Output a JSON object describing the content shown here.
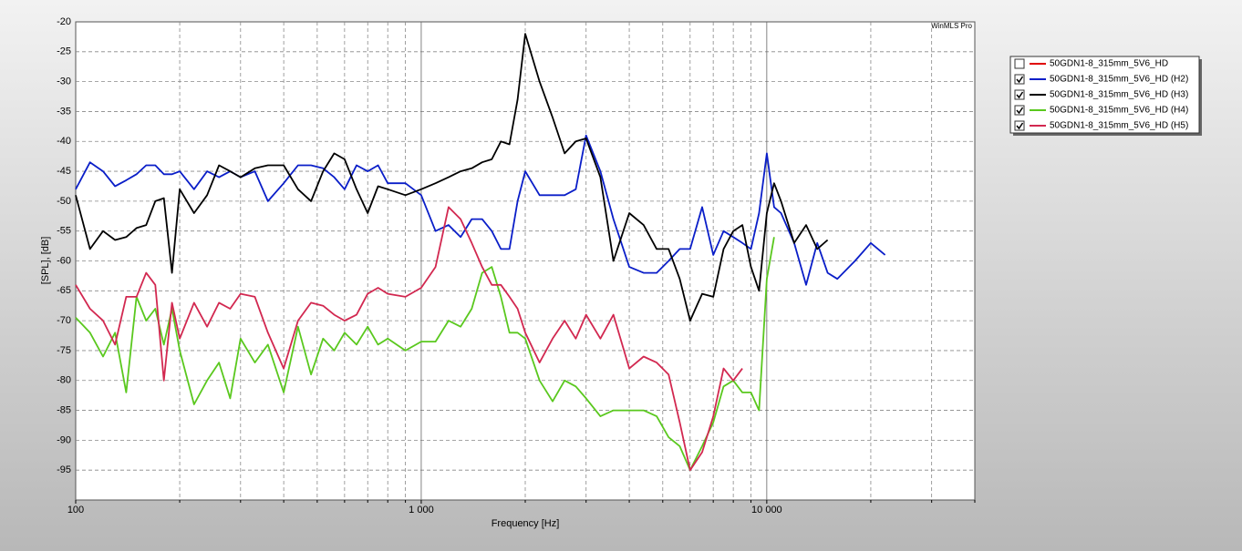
{
  "chart_data": {
    "type": "line",
    "corner_label": "WinMLS Pro",
    "xlabel": "Frequency [Hz]",
    "ylabel": "[SPL], [dB]",
    "xscale": "log",
    "xlim": [
      100,
      40000
    ],
    "xticks": [
      100,
      {
        "value": 1000,
        "label": "1 000"
      },
      {
        "value": 10000,
        "label": "10 000"
      }
    ],
    "xminorticks": [
      200,
      300,
      400,
      500,
      600,
      700,
      800,
      900,
      2000,
      3000,
      4000,
      5000,
      6000,
      7000,
      8000,
      9000,
      20000,
      30000,
      40000
    ],
    "ylim": [
      -100,
      -20
    ],
    "yticks": [
      -20,
      -25,
      -30,
      -35,
      -40,
      -45,
      -50,
      -55,
      -60,
      -65,
      -70,
      -75,
      -80,
      -85,
      -90,
      -95
    ],
    "grid": true,
    "legend": "top-right",
    "x": [
      100,
      110,
      120,
      130,
      140,
      150,
      160,
      170,
      180,
      190,
      200,
      220,
      240,
      260,
      280,
      300,
      330,
      360,
      400,
      440,
      480,
      520,
      560,
      600,
      650,
      700,
      750,
      800,
      900,
      1000,
      1100,
      1200,
      1300,
      1400,
      1500,
      1600,
      1700,
      1800,
      1900,
      2000,
      2200,
      2400,
      2600,
      2800,
      3000,
      3300,
      3600,
      4000,
      4400,
      4800,
      5200,
      5600,
      6000,
      6500,
      7000,
      7500,
      8000,
      8500,
      9000,
      9500,
      10000,
      10500,
      11000,
      12000,
      13000,
      14000,
      15000,
      16000,
      18000,
      20000,
      22000
    ],
    "series": [
      {
        "name": "50GDN1-8_315mm_5V6_HD",
        "color": "#e00000",
        "checked": false,
        "values": [
          null,
          null,
          null,
          null,
          null,
          null,
          null,
          null,
          null,
          null,
          null,
          null,
          null,
          null,
          null,
          null,
          null,
          null,
          null,
          null,
          null,
          null,
          null,
          null,
          null,
          null,
          null,
          null,
          null,
          null,
          null,
          null,
          null,
          null,
          null,
          null,
          null,
          null,
          null,
          null,
          null,
          null,
          null,
          null,
          null,
          null,
          null,
          null,
          null,
          null,
          null,
          null,
          null,
          null,
          null,
          null,
          null,
          null,
          null,
          null,
          null,
          null,
          null,
          null,
          null,
          null,
          null,
          null,
          null,
          null,
          null
        ]
      },
      {
        "name": "50GDN1-8_315mm_5V6_HD (H2)",
        "color": "#0a1ec8",
        "checked": true,
        "values": [
          -48,
          -43.5,
          -45,
          -47.5,
          -46.5,
          -45.5,
          -44,
          -44,
          -45.5,
          -45.5,
          -45,
          -48,
          -45,
          -46,
          -45,
          -46,
          -45,
          -50,
          -47,
          -44,
          -44,
          -44.5,
          -46,
          -48,
          -44,
          -45,
          -44,
          -47,
          -47,
          -49,
          -55,
          -54,
          -56,
          -53,
          -53,
          -55,
          -58,
          -58,
          -50,
          -45,
          -49,
          -49,
          -49,
          -48,
          -39,
          -45,
          -53,
          -61,
          -62,
          -62,
          -60,
          -58,
          -58,
          -51,
          -59,
          -55,
          -56,
          -57,
          -58,
          -52,
          -42,
          -51,
          -52,
          -57,
          -64,
          -57,
          -62,
          -63,
          -60,
          -57,
          -59
        ]
      },
      {
        "name": "50GDN1-8_315mm_5V6_HD (H3)",
        "color": "#000000",
        "checked": true,
        "values": [
          -49,
          -58,
          -55,
          -56.5,
          -56,
          -54.5,
          -54,
          -50,
          -49.5,
          -62,
          -48,
          -52,
          -49,
          -44,
          -45,
          -46,
          -44.5,
          -44,
          -44,
          -48,
          -50,
          -45,
          -42,
          -43,
          -48,
          -52,
          -47.5,
          -48,
          -49,
          -48,
          -47,
          -46,
          -45,
          -44.5,
          -43.5,
          -43,
          -40,
          -40.5,
          -33,
          -22,
          -30,
          -36,
          -42,
          -40,
          -39.5,
          -46,
          -60,
          -52,
          -54,
          -58,
          -58,
          -63,
          -70,
          -65.5,
          -66,
          -58,
          -55,
          -54,
          -61,
          -65,
          -52,
          -47,
          -50,
          -57,
          -54,
          -58,
          -56.5,
          null,
          null,
          null,
          null
        ]
      },
      {
        "name": "50GDN1-8_315mm_5V6_HD (H4)",
        "color": "#5ac81e",
        "checked": true,
        "values": [
          -69.5,
          -72,
          -76,
          -72,
          -82,
          -66,
          -70,
          -68,
          -74,
          -68,
          -75,
          -84,
          -80,
          -77,
          -83,
          -73,
          -77,
          -74,
          -82,
          -71,
          -79,
          -73,
          -75,
          -72,
          -74,
          -71,
          -74,
          -73,
          -75,
          -73.5,
          -73.5,
          -70,
          -71,
          -68,
          -62,
          -61,
          -66,
          -72,
          -72,
          -73,
          -80,
          -83.5,
          -80,
          -81,
          -83,
          -86,
          -85,
          -85,
          -85,
          -86,
          -89.5,
          -91,
          -95,
          -91,
          -87,
          -81,
          -80,
          -82,
          -82,
          -85,
          -63,
          -56,
          null,
          null,
          null,
          null,
          null,
          null,
          null,
          null,
          null
        ]
      },
      {
        "name": "50GDN1-8_315mm_5V6_HD (H5)",
        "color": "#d22850",
        "checked": true,
        "values": [
          -64,
          -68,
          -70,
          -74,
          -66,
          -66,
          -62,
          -64,
          -80,
          -67,
          -73,
          -67,
          -71,
          -67,
          -68,
          -65.5,
          -66,
          -72,
          -78,
          -70,
          -67,
          -67.5,
          -69,
          -70,
          -69,
          -65.5,
          -64.5,
          -65.5,
          -66,
          -64.5,
          -61,
          -51,
          -53,
          -57,
          -61,
          -64,
          -64,
          -66,
          -68,
          -72,
          -77,
          -73,
          -70,
          -73,
          -69,
          -73,
          -69,
          -78,
          -76,
          -77,
          -79,
          -87,
          -95,
          -92,
          -86,
          -78,
          -80,
          -78,
          null,
          null,
          null,
          null,
          null,
          null,
          null,
          null,
          null,
          null,
          null,
          null,
          null
        ]
      }
    ]
  }
}
